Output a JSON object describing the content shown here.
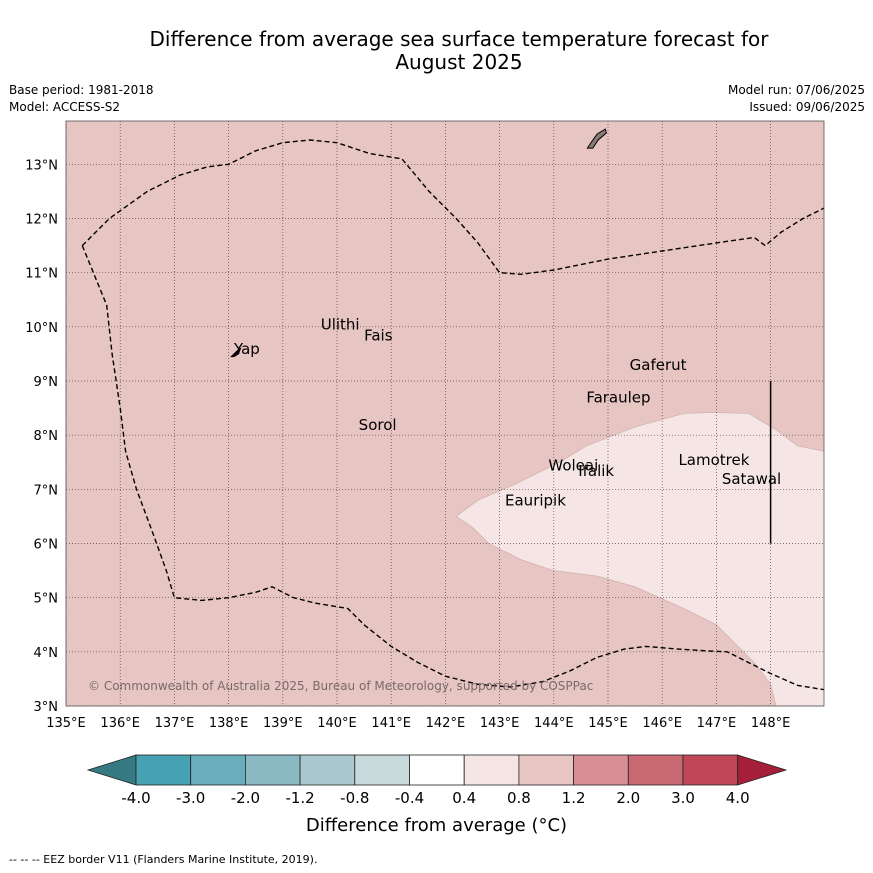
{
  "title_line1": "Difference from average sea surface temperature forecast for",
  "title_line2": "August 2025",
  "base_period": "Base period: 1981-2018",
  "model": "Model: ACCESS-S2",
  "model_run": "Model run: 07/06/2025",
  "issued": "Issued: 09/06/2025",
  "copyright": "© Commonwealth of Australia 2025, Bureau of Meteorology, supported by COSPPac",
  "footer_note": "--  --  -- EEZ border V11 (Flanders Marine Institute, 2019).",
  "colorbar_label": "Difference from average (°C)",
  "map": {
    "lon_range": [
      135,
      149
    ],
    "lat_range": [
      3,
      13.8
    ],
    "lon_ticks": [
      "135°E",
      "136°E",
      "137°E",
      "138°E",
      "139°E",
      "140°E",
      "141°E",
      "142°E",
      "143°E",
      "144°E",
      "145°E",
      "146°E",
      "147°E",
      "148°E"
    ],
    "lat_ticks": [
      "3°N",
      "4°N",
      "5°N",
      "6°N",
      "7°N",
      "8°N",
      "9°N",
      "10°N",
      "11°N",
      "12°N",
      "13°N"
    ],
    "background_category": "0.8 to 1.2",
    "background_color": "#e6c5c2",
    "warm_patch_category": "0.4 to 0.8",
    "warm_patch_color": "#f5e6e5",
    "places": [
      {
        "name": "Yap",
        "lon": 138.1,
        "lat": 9.5
      },
      {
        "name": "Ulithi",
        "lon": 139.7,
        "lat": 9.95
      },
      {
        "name": "Fais",
        "lon": 140.5,
        "lat": 9.75
      },
      {
        "name": "Sorol",
        "lon": 140.4,
        "lat": 8.1
      },
      {
        "name": "Gaferut",
        "lon": 145.4,
        "lat": 9.2
      },
      {
        "name": "Faraulep",
        "lon": 144.6,
        "lat": 8.6
      },
      {
        "name": "Woleai",
        "lon": 143.9,
        "lat": 7.35
      },
      {
        "name": "Ifalik",
        "lon": 144.45,
        "lat": 7.25
      },
      {
        "name": "Lamotrek",
        "lon": 146.3,
        "lat": 7.45
      },
      {
        "name": "Satawal",
        "lon": 147.1,
        "lat": 7.1
      },
      {
        "name": "Eauripik",
        "lon": 143.1,
        "lat": 6.7
      }
    ]
  },
  "colorbar": {
    "ticks": [
      "-4.0",
      "-3.0",
      "-2.0",
      "-1.2",
      "-0.8",
      "-0.4",
      "0.4",
      "0.8",
      "1.2",
      "2.0",
      "3.0",
      "4.0"
    ],
    "colors": [
      "#357a83",
      "#46a1b2",
      "#6aaebd",
      "#8ab9c4",
      "#a9c9cf",
      "#c8d9dc",
      "#ffffff",
      "#f5e6e5",
      "#e6c5c2",
      "#d78f95",
      "#c86971",
      "#bf4758",
      "#a51f3b"
    ]
  }
}
